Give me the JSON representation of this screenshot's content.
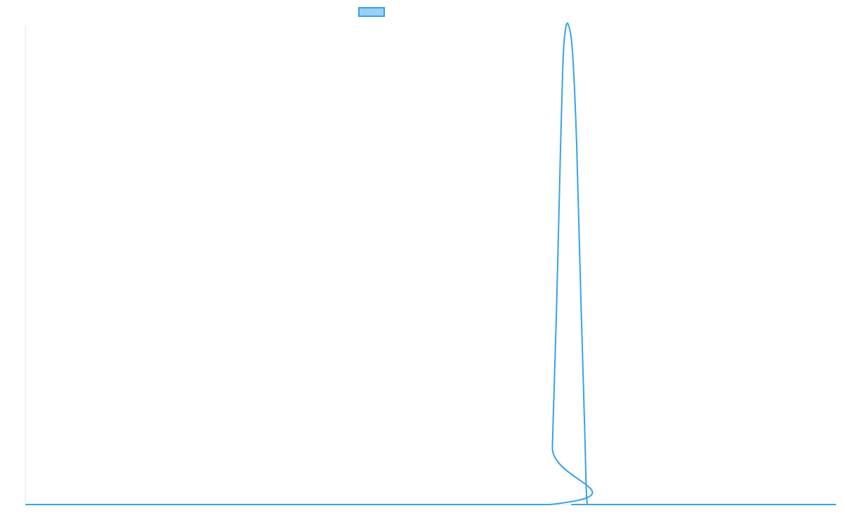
{
  "chart_data": {
    "type": "line",
    "title": "",
    "xlabel": "",
    "ylabel": "",
    "grid": false,
    "legend_position": "top",
    "xlim": [
      0,
      100
    ],
    "ylim": [
      0,
      1
    ],
    "series": [
      {
        "color": "#36a2eb",
        "fill_color": "rgba(54, 162, 235, 0.5)",
        "x": [
          0,
          64.7,
          65.0,
          65.5,
          66.0,
          66.3,
          66.6,
          67.0,
          67.5,
          68.0,
          68.5,
          69.0,
          69.3,
          70.0,
          100
        ],
        "y": [
          0,
          0,
          0.12,
          0.4,
          0.74,
          0.92,
          0.99,
          1.0,
          0.94,
          0.75,
          0.44,
          0.15,
          0,
          0,
          0
        ]
      }
    ]
  }
}
